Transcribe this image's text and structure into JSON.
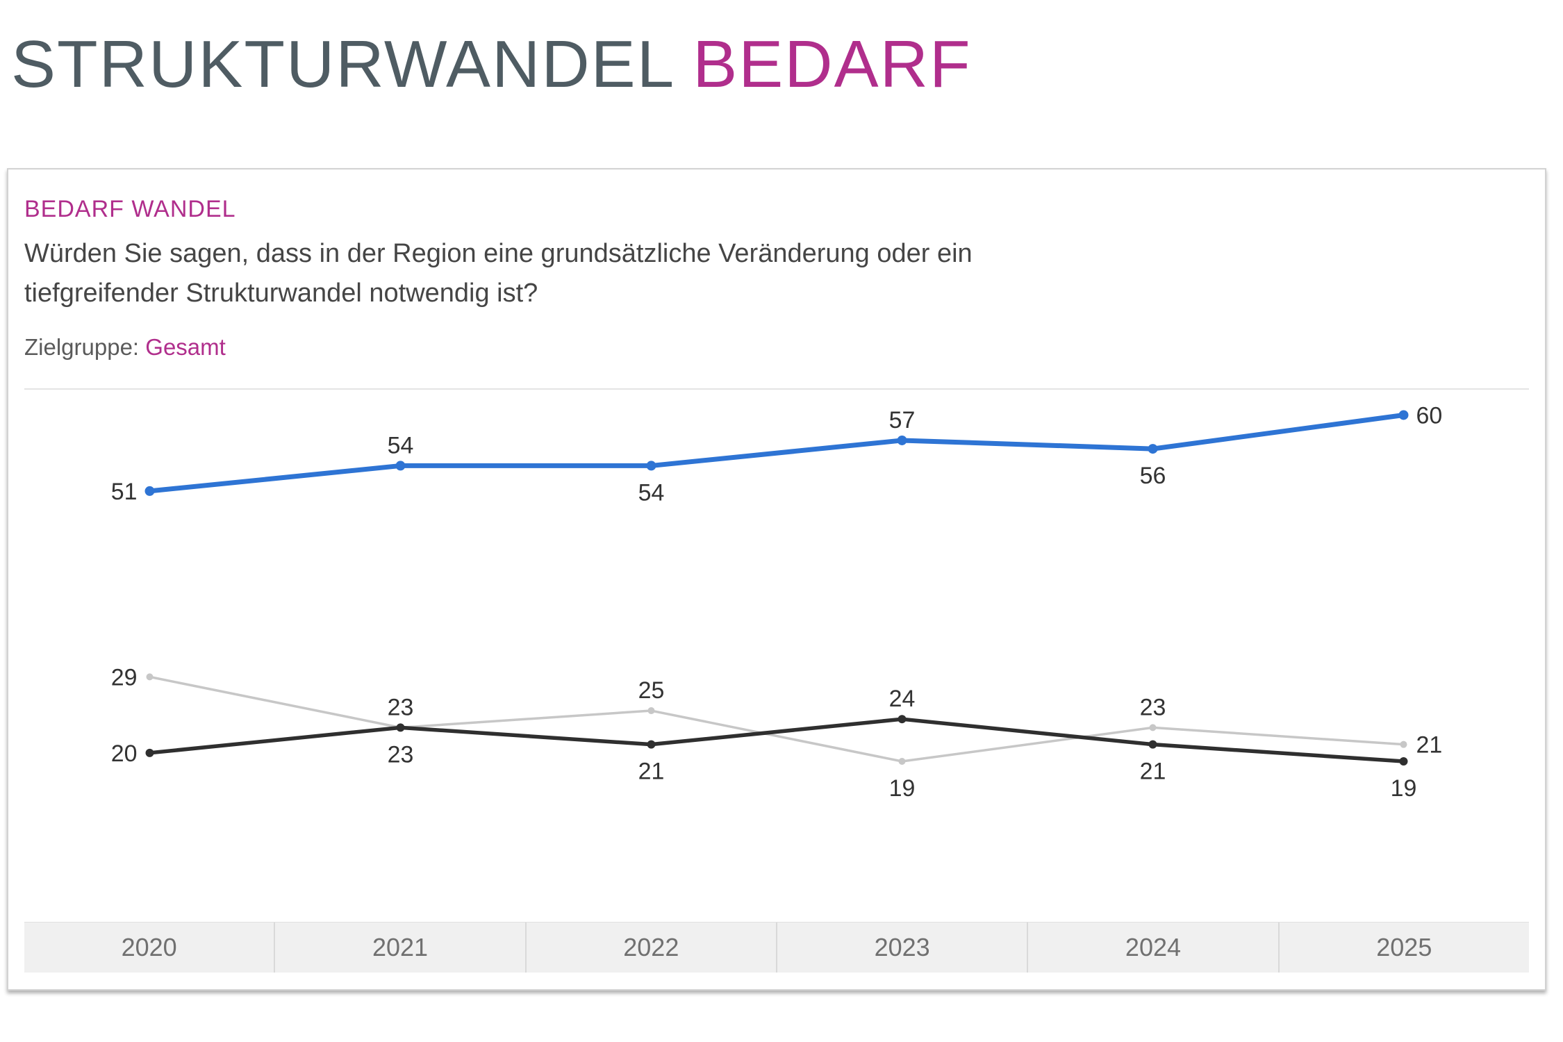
{
  "page_title": {
    "part1": "STRUKTURWANDEL",
    "part2": "BEDARF"
  },
  "panel": {
    "subtitle": "BEDARF WANDEL",
    "question": "Würden Sie sagen, dass in der Region eine grundsätzliche Veränderung oder ein tiefgreifender Strukturwandel notwendig ist?",
    "target_group_label": "Zielgruppe:",
    "target_group_value": "Gesamt"
  },
  "colors": {
    "accent_magenta": "#b02e8c",
    "title_slate": "#4f5c63",
    "line_blue": "#2e74d4",
    "line_dark": "#2f2f2f",
    "line_gray": "#c7c7c7",
    "value_label": "#333333",
    "axis_text": "#707070",
    "axis_band_bg": "#f0f0f0"
  },
  "chart_data": {
    "type": "line",
    "title": "BEDARF WANDEL",
    "categories": [
      "2020",
      "2021",
      "2022",
      "2023",
      "2024",
      "2025"
    ],
    "series": [
      {
        "name": "strukturwandel-notwendig",
        "color": "#2e74d4",
        "stroke_width": 7,
        "point_radius": 7,
        "values": [
          51,
          54,
          54,
          57,
          56,
          60
        ],
        "label_pos": [
          "left",
          "above",
          "below",
          "above",
          "below",
          "right"
        ]
      },
      {
        "name": "dark-series",
        "color": "#2f2f2f",
        "stroke_width": 5.5,
        "point_radius": 6,
        "values": [
          20,
          23,
          21,
          24,
          21,
          19
        ],
        "label_pos": [
          "left",
          "below",
          "below",
          "above",
          "below",
          "below"
        ]
      },
      {
        "name": "gray-series",
        "color": "#c7c7c7",
        "stroke_width": 3.5,
        "point_radius": 5,
        "values": [
          29,
          23,
          25,
          19,
          23,
          21
        ],
        "label_pos": [
          "left",
          "above",
          "above",
          "below",
          "above",
          "right"
        ]
      }
    ],
    "xlabel": "",
    "ylabel": "",
    "ylim": [
      0,
      63
    ],
    "grid": false,
    "legend": "none",
    "value_labels": true
  }
}
